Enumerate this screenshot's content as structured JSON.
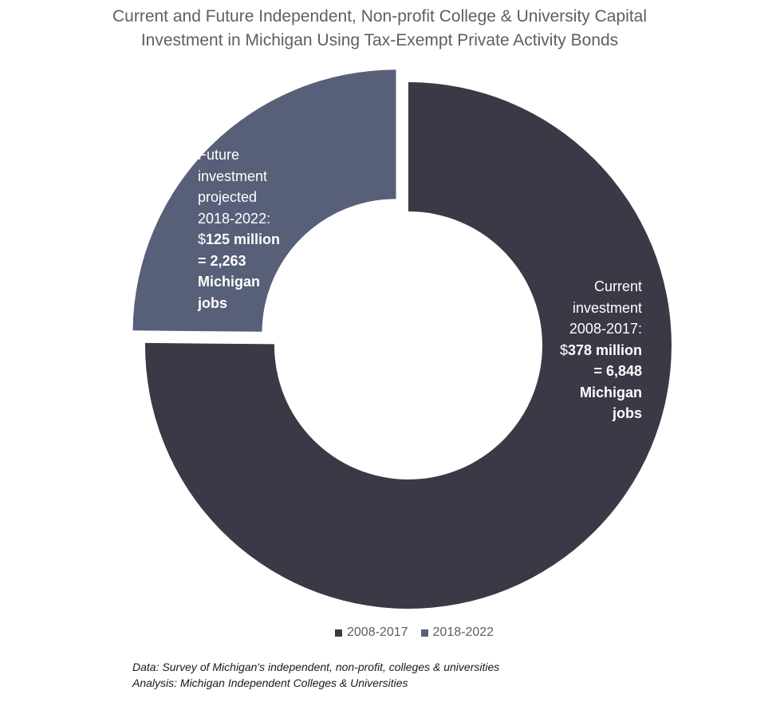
{
  "chart_data": {
    "type": "pie",
    "title": "Current and Future Independent,  Non-profit College & University Capital Investment in Michigan Using Tax-Exempt Private Activity Bonds",
    "title_lines": [
      "Current and Future Independent,  Non-profit College & University Capital",
      "Investment in Michigan Using Tax-Exempt Private Activity Bonds"
    ],
    "categories": [
      "2008-2017",
      "2018-2022"
    ],
    "values": [
      378,
      125
    ],
    "colors": [
      "#3d3846",
      "#585f78"
    ],
    "donut": true,
    "exploded": true,
    "legend_position": "bottom",
    "slice_labels": [
      {
        "lines": [
          {
            "text": "Current",
            "bold": false
          },
          {
            "text": "investment",
            "bold": false
          },
          {
            "text": "2008-2017:",
            "bold": false
          },
          {
            "text": "$",
            "bold": false,
            "continues": "378 million"
          },
          {
            "text": "= 6,848",
            "bold": true
          },
          {
            "text": "Michigan",
            "bold": true
          },
          {
            "text": "jobs",
            "bold": true
          }
        ]
      },
      {
        "lines": [
          {
            "text": "Future",
            "bold": false
          },
          {
            "text": "investment",
            "bold": false
          },
          {
            "text": "projected",
            "bold": false
          },
          {
            "text": "2018-2022:",
            "bold": false
          },
          {
            "text": "$",
            "bold": false,
            "continues": "125 million"
          },
          {
            "text": "= 2,263",
            "bold": true
          },
          {
            "text": "Michigan",
            "bold": true
          },
          {
            "text": "jobs",
            "bold": true
          }
        ]
      }
    ]
  },
  "source": {
    "data_line": "Data: Survey of Michigan's independent, non-profit, colleges & universities",
    "analysis_line": "Analysis: Michigan Independent Colleges & Universities"
  }
}
